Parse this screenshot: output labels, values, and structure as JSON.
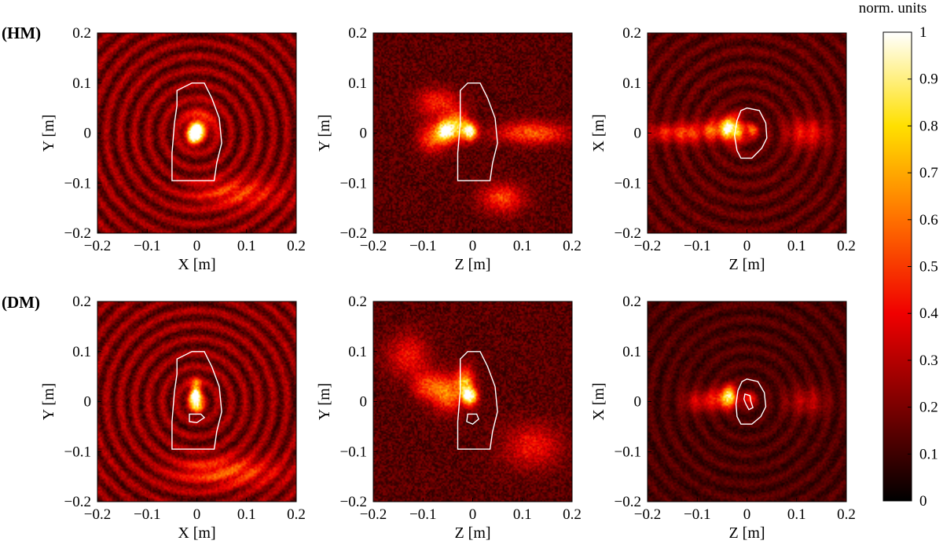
{
  "chart_data": {
    "type": "heatmap",
    "row_labels": [
      "(HM)",
      "(DM)"
    ],
    "colorbar": {
      "title": "norm. units",
      "range": [
        0,
        1
      ],
      "ticks": [
        0,
        0.1,
        0.2,
        0.3,
        0.4,
        0.5,
        0.6,
        0.7,
        0.8,
        0.9,
        1
      ],
      "colormap": "hot",
      "colors": [
        "#000000",
        "#7a0000",
        "#f00000",
        "#ff7000",
        "#ffe000",
        "#ffffff"
      ]
    },
    "panels": [
      {
        "row": "(HM)",
        "xlabel": "X [m]",
        "ylabel": "Y [m]",
        "xlim": [
          -0.2,
          0.2
        ],
        "ylim": [
          -0.2,
          0.2
        ],
        "xticks": [
          "−0.2",
          "−0.1",
          "0",
          "0.1",
          "0.2"
        ],
        "yticks": [
          "−0.2",
          "−0.1",
          "0",
          "0.1",
          "0.2"
        ],
        "background": 0.15,
        "hotspots": [
          {
            "x": 0.0,
            "y": 0.003,
            "sx": 0.008,
            "sy": 0.01,
            "v": 0.95
          },
          {
            "x": -0.008,
            "y": -0.008,
            "sx": 0.01,
            "sy": 0.012,
            "v": 0.6
          },
          {
            "x": 0.005,
            "y": 0.02,
            "sx": 0.02,
            "sy": 0.02,
            "v": 0.35
          },
          {
            "x": 0.08,
            "y": -0.12,
            "sx": 0.06,
            "sy": 0.02,
            "v": 0.3
          }
        ],
        "rings": {
          "cx": 0.0,
          "cy": 0.0,
          "spacing": 0.028,
          "v": 0.18
        },
        "contours": [
          [
            [
              -0.01,
              0.1
            ],
            [
              0.015,
              0.1
            ],
            [
              0.03,
              0.07
            ],
            [
              0.045,
              0.03
            ],
            [
              0.05,
              -0.02
            ],
            [
              0.04,
              -0.06
            ],
            [
              0.035,
              -0.095
            ],
            [
              -0.05,
              -0.095
            ],
            [
              -0.05,
              -0.04
            ],
            [
              -0.045,
              0.02
            ],
            [
              -0.04,
              0.055
            ],
            [
              -0.04,
              0.085
            ],
            [
              -0.01,
              0.1
            ]
          ]
        ]
      },
      {
        "row": "(HM)",
        "xlabel": "Z [m]",
        "ylabel": "Y [m]",
        "xlim": [
          -0.2,
          0.2
        ],
        "ylim": [
          -0.2,
          0.2
        ],
        "xticks": [
          "−0.2",
          "−0.1",
          "0",
          "0.1",
          "0.2"
        ],
        "yticks": [
          "−0.2",
          "−0.1",
          "0",
          "0.1",
          "0.2"
        ],
        "background": 0.18,
        "hotspots": [
          {
            "x": -0.055,
            "y": 0.005,
            "sx": 0.012,
            "sy": 0.014,
            "v": 0.85
          },
          {
            "x": -0.005,
            "y": 0.003,
            "sx": 0.01,
            "sy": 0.012,
            "v": 0.9
          },
          {
            "x": -0.03,
            "y": 0.015,
            "sx": 0.015,
            "sy": 0.02,
            "v": 0.6
          },
          {
            "x": -0.08,
            "y": -0.01,
            "sx": 0.02,
            "sy": 0.02,
            "v": 0.45
          },
          {
            "x": 0.12,
            "y": 0.0,
            "sx": 0.05,
            "sy": 0.015,
            "v": 0.45
          },
          {
            "x": 0.06,
            "y": -0.13,
            "sx": 0.03,
            "sy": 0.02,
            "v": 0.4
          },
          {
            "x": -0.07,
            "y": 0.06,
            "sx": 0.03,
            "sy": 0.02,
            "v": 0.35
          }
        ],
        "rings": null,
        "contours": [
          [
            [
              -0.01,
              0.1
            ],
            [
              0.015,
              0.1
            ],
            [
              0.03,
              0.07
            ],
            [
              0.045,
              0.03
            ],
            [
              0.05,
              -0.02
            ],
            [
              0.04,
              -0.06
            ],
            [
              0.035,
              -0.095
            ],
            [
              -0.03,
              -0.095
            ],
            [
              -0.03,
              -0.04
            ],
            [
              -0.025,
              0.02
            ],
            [
              -0.025,
              0.055
            ],
            [
              -0.025,
              0.085
            ],
            [
              -0.01,
              0.1
            ]
          ]
        ]
      },
      {
        "row": "(HM)",
        "xlabel": "Z [m]",
        "ylabel": "X [m]",
        "xlim": [
          -0.2,
          0.2
        ],
        "ylim": [
          -0.2,
          0.2
        ],
        "xticks": [
          "−0.2",
          "−0.1",
          "0",
          "0.1",
          "0.2"
        ],
        "yticks": [
          "−0.2",
          "−0.1",
          "0",
          "0.1",
          "0.2"
        ],
        "background": 0.12,
        "hotspots": [
          {
            "x": -0.04,
            "y": 0.01,
            "sx": 0.01,
            "sy": 0.015,
            "v": 0.85
          },
          {
            "x": -0.02,
            "y": 0.005,
            "sx": 0.01,
            "sy": 0.02,
            "v": 0.6
          },
          {
            "x": -0.07,
            "y": 0.005,
            "sx": 0.015,
            "sy": 0.015,
            "v": 0.45
          },
          {
            "x": -0.12,
            "y": 0.0,
            "sx": 0.02,
            "sy": 0.015,
            "v": 0.4
          },
          {
            "x": -0.17,
            "y": 0.0,
            "sx": 0.02,
            "sy": 0.012,
            "v": 0.3
          },
          {
            "x": 0.12,
            "y": 0.0,
            "sx": 0.03,
            "sy": 0.02,
            "v": 0.3
          },
          {
            "x": 0.01,
            "y": 0.005,
            "sx": 0.01,
            "sy": 0.01,
            "v": 0.45
          }
        ],
        "rings": {
          "cx": 0.0,
          "cy": 0.0,
          "spacing": 0.03,
          "v": 0.1
        },
        "contours": [
          [
            [
              0.0,
              0.05
            ],
            [
              0.025,
              0.045
            ],
            [
              0.038,
              0.02
            ],
            [
              0.04,
              -0.01
            ],
            [
              0.03,
              -0.03
            ],
            [
              0.01,
              -0.05
            ],
            [
              -0.012,
              -0.05
            ],
            [
              -0.02,
              -0.035
            ],
            [
              -0.025,
              -0.005
            ],
            [
              -0.02,
              0.025
            ],
            [
              -0.012,
              0.045
            ],
            [
              0.0,
              0.05
            ]
          ]
        ]
      },
      {
        "row": "(DM)",
        "xlabel": "X [m]",
        "ylabel": "Y [m]",
        "xlim": [
          -0.2,
          0.2
        ],
        "ylim": [
          -0.2,
          0.2
        ],
        "xticks": [
          "−0.2",
          "−0.1",
          "0",
          "0.1",
          "0.2"
        ],
        "yticks": [
          "−0.2",
          "−0.1",
          "0",
          "0.1",
          "0.2"
        ],
        "background": 0.15,
        "hotspots": [
          {
            "x": -0.003,
            "y": 0.008,
            "sx": 0.008,
            "sy": 0.01,
            "v": 0.95
          },
          {
            "x": -0.002,
            "y": 0.03,
            "sx": 0.008,
            "sy": 0.012,
            "v": 0.55
          },
          {
            "x": 0.0,
            "y": -0.01,
            "sx": 0.01,
            "sy": 0.01,
            "v": 0.5
          },
          {
            "x": 0.06,
            "y": -0.14,
            "sx": 0.07,
            "sy": 0.02,
            "v": 0.35
          }
        ],
        "rings": {
          "cx": 0.0,
          "cy": 0.0,
          "spacing": 0.028,
          "v": 0.18
        },
        "contours": [
          [
            [
              -0.01,
              0.1
            ],
            [
              0.015,
              0.1
            ],
            [
              0.03,
              0.07
            ],
            [
              0.045,
              0.03
            ],
            [
              0.05,
              -0.02
            ],
            [
              0.04,
              -0.06
            ],
            [
              0.035,
              -0.095
            ],
            [
              -0.05,
              -0.095
            ],
            [
              -0.05,
              -0.04
            ],
            [
              -0.045,
              0.02
            ],
            [
              -0.04,
              0.055
            ],
            [
              -0.04,
              0.085
            ],
            [
              -0.01,
              0.1
            ]
          ],
          [
            [
              -0.015,
              -0.025
            ],
            [
              0.008,
              -0.025
            ],
            [
              0.015,
              -0.032
            ],
            [
              0.0,
              -0.042
            ],
            [
              -0.015,
              -0.04
            ],
            [
              -0.015,
              -0.025
            ]
          ]
        ]
      },
      {
        "row": "(DM)",
        "xlabel": "Z [m]",
        "ylabel": "Y [m]",
        "xlim": [
          -0.2,
          0.2
        ],
        "ylim": [
          -0.2,
          0.2
        ],
        "xticks": [
          "−0.2",
          "−0.1",
          "0",
          "0.1",
          "0.2"
        ],
        "yticks": [
          "−0.2",
          "−0.1",
          "0",
          "0.1",
          "0.2"
        ],
        "background": 0.18,
        "hotspots": [
          {
            "x": -0.005,
            "y": 0.01,
            "sx": 0.01,
            "sy": 0.012,
            "v": 0.95
          },
          {
            "x": -0.015,
            "y": 0.04,
            "sx": 0.012,
            "sy": 0.02,
            "v": 0.6
          },
          {
            "x": -0.05,
            "y": 0.015,
            "sx": 0.02,
            "sy": 0.025,
            "v": 0.5
          },
          {
            "x": -0.09,
            "y": 0.03,
            "sx": 0.02,
            "sy": 0.02,
            "v": 0.4
          },
          {
            "x": -0.13,
            "y": 0.09,
            "sx": 0.03,
            "sy": 0.03,
            "v": 0.3
          },
          {
            "x": 0.12,
            "y": -0.09,
            "sx": 0.04,
            "sy": 0.03,
            "v": 0.3
          }
        ],
        "rings": null,
        "contours": [
          [
            [
              -0.01,
              0.1
            ],
            [
              0.015,
              0.1
            ],
            [
              0.03,
              0.07
            ],
            [
              0.045,
              0.03
            ],
            [
              0.05,
              -0.02
            ],
            [
              0.04,
              -0.06
            ],
            [
              0.035,
              -0.095
            ],
            [
              -0.03,
              -0.095
            ],
            [
              -0.03,
              -0.04
            ],
            [
              -0.025,
              0.02
            ],
            [
              -0.025,
              0.055
            ],
            [
              -0.025,
              0.085
            ],
            [
              -0.01,
              0.1
            ]
          ],
          [
            [
              -0.01,
              -0.025
            ],
            [
              0.008,
              -0.025
            ],
            [
              0.012,
              -0.035
            ],
            [
              0.0,
              -0.045
            ],
            [
              -0.012,
              -0.04
            ],
            [
              -0.01,
              -0.025
            ]
          ]
        ]
      },
      {
        "row": "(DM)",
        "xlabel": "Z [m]",
        "ylabel": "X [m]",
        "xlim": [
          -0.2,
          0.2
        ],
        "ylim": [
          -0.2,
          0.2
        ],
        "xticks": [
          "−0.2",
          "−0.1",
          "0",
          "0.1",
          "0.2"
        ],
        "yticks": [
          "−0.2",
          "−0.1",
          "0",
          "0.1",
          "0.2"
        ],
        "background": 0.1,
        "hotspots": [
          {
            "x": -0.035,
            "y": 0.01,
            "sx": 0.01,
            "sy": 0.015,
            "v": 0.85
          },
          {
            "x": -0.06,
            "y": 0.005,
            "sx": 0.015,
            "sy": 0.015,
            "v": 0.35
          },
          {
            "x": -0.1,
            "y": 0.0,
            "sx": 0.02,
            "sy": 0.015,
            "v": 0.25
          },
          {
            "x": 0.005,
            "y": 0.005,
            "sx": 0.01,
            "sy": 0.01,
            "v": 0.35
          },
          {
            "x": 0.12,
            "y": 0.0,
            "sx": 0.03,
            "sy": 0.02,
            "v": 0.2
          }
        ],
        "rings": {
          "cx": 0.0,
          "cy": 0.0,
          "spacing": 0.03,
          "v": 0.08
        },
        "contours": [
          [
            [
              0.0,
              0.045
            ],
            [
              0.022,
              0.04
            ],
            [
              0.035,
              0.018
            ],
            [
              0.038,
              -0.01
            ],
            [
              0.028,
              -0.03
            ],
            [
              0.01,
              -0.045
            ],
            [
              -0.012,
              -0.045
            ],
            [
              -0.02,
              -0.03
            ],
            [
              -0.022,
              -0.005
            ],
            [
              -0.018,
              0.022
            ],
            [
              -0.01,
              0.04
            ],
            [
              0.0,
              0.045
            ]
          ],
          [
            [
              -0.004,
              0.015
            ],
            [
              0.006,
              0.012
            ],
            [
              0.008,
              0.0
            ],
            [
              0.012,
              -0.012
            ],
            [
              0.004,
              -0.016
            ],
            [
              -0.002,
              -0.005
            ],
            [
              -0.006,
              0.005
            ],
            [
              -0.004,
              0.015
            ]
          ]
        ]
      }
    ]
  }
}
